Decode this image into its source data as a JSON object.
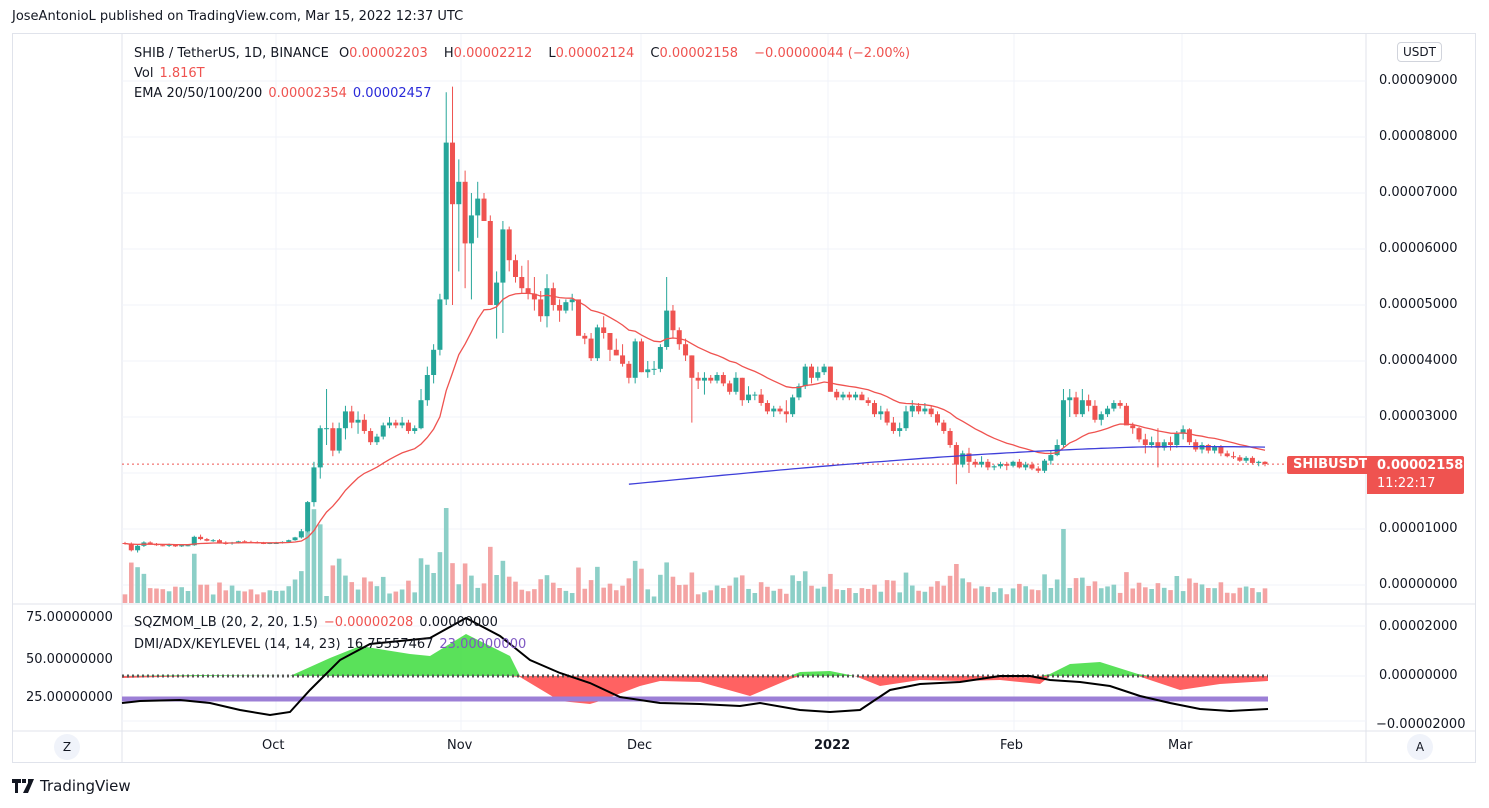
{
  "header": {
    "published": "JoseAntonioL published on TradingView.com, Mar 15, 2022 12:37 UTC"
  },
  "legend": {
    "symbol": "SHIB / TetherUS, 1D, BINANCE",
    "o_label": "O",
    "o": "0.00002203",
    "h_label": "H",
    "h": "0.00002212",
    "l_label": "L",
    "l": "0.00002124",
    "c_label": "C",
    "c": "0.00002158",
    "change": "−0.00000044 (−2.00%)",
    "vol_label": "Vol",
    "vol": "1.816T",
    "ema_label": "EMA 20/50/100/200",
    "ema1": "0.00002354",
    "ema2": "0.00002457",
    "sqz_label": "SQZMOM_LB (20, 2, 20, 1.5)",
    "sqz1": "−0.00000208",
    "sqz2": "0.00000000",
    "dmi_label": "DMI/ADX/KEYLEVEL (14, 14, 23)",
    "dmi1": "16.75557467",
    "dmi2": "23.00000000"
  },
  "currency_button": "USDT",
  "price_tag": {
    "symbol": "SHIBUSDT",
    "price": "0.00002158",
    "countdown": "11:22:17",
    "color": "#ef5350"
  },
  "left_axis": [
    "75.00000000",
    "50.00000000",
    "25.00000000"
  ],
  "right_axis_lower": [
    "0.00002000",
    "0.00000000",
    "−0.00002000"
  ],
  "scale_buttons": {
    "left": "Z",
    "right": "A"
  },
  "brand": "TradingView",
  "colors": {
    "up": "#26a69a",
    "down": "#ef5350",
    "ema20": "#ef5350",
    "ema200": "#3f3fd9",
    "vol_up": "#8ccfc7",
    "vol_down": "#f4a3a3",
    "keylevel": "#9c7fd6"
  },
  "chart_data": {
    "type": "candlestick",
    "title": "SHIB / TetherUS, 1D, BINANCE",
    "x_ticks": [
      "Oct",
      "Nov",
      "Dec",
      "2022",
      "Feb",
      "Mar"
    ],
    "y_ticks": [
      "0.00009000",
      "0.00008000",
      "0.00007000",
      "0.00006000",
      "0.00005000",
      "0.00004000",
      "0.00003000",
      "0.00001000",
      "0.00000000"
    ],
    "ylim": [
      0,
      9.3e-05
    ],
    "last_price": 2.158e-05,
    "ohlc_1e-5": [
      [
        0.75,
        0.77,
        0.72,
        0.74
      ],
      [
        0.74,
        0.76,
        0.6,
        0.62
      ],
      [
        0.62,
        0.73,
        0.58,
        0.7
      ],
      [
        0.7,
        0.78,
        0.68,
        0.76
      ],
      [
        0.76,
        0.78,
        0.72,
        0.73
      ],
      [
        0.73,
        0.75,
        0.7,
        0.71
      ],
      [
        0.71,
        0.73,
        0.69,
        0.7
      ],
      [
        0.7,
        0.74,
        0.68,
        0.72
      ],
      [
        0.72,
        0.73,
        0.68,
        0.69
      ],
      [
        0.69,
        0.72,
        0.68,
        0.71
      ],
      [
        0.71,
        0.72,
        0.69,
        0.71
      ],
      [
        0.71,
        0.88,
        0.7,
        0.86
      ],
      [
        0.86,
        0.9,
        0.8,
        0.82
      ],
      [
        0.82,
        0.84,
        0.78,
        0.79
      ],
      [
        0.79,
        0.82,
        0.77,
        0.8
      ],
      [
        0.8,
        0.82,
        0.74,
        0.75
      ],
      [
        0.75,
        0.78,
        0.72,
        0.74
      ],
      [
        0.74,
        0.77,
        0.72,
        0.76
      ],
      [
        0.76,
        0.79,
        0.74,
        0.78
      ],
      [
        0.78,
        0.8,
        0.75,
        0.77
      ],
      [
        0.77,
        0.79,
        0.75,
        0.76
      ],
      [
        0.76,
        0.78,
        0.74,
        0.75
      ],
      [
        0.75,
        0.77,
        0.73,
        0.74
      ],
      [
        0.74,
        0.76,
        0.73,
        0.75
      ],
      [
        0.75,
        0.77,
        0.74,
        0.75
      ],
      [
        0.75,
        0.78,
        0.74,
        0.77
      ],
      [
        0.77,
        0.81,
        0.76,
        0.8
      ],
      [
        0.8,
        0.86,
        0.79,
        0.85
      ],
      [
        0.85,
        1.0,
        0.83,
        0.96
      ],
      [
        0.96,
        1.5,
        0.94,
        1.48
      ],
      [
        1.48,
        2.2,
        1.4,
        2.1
      ],
      [
        2.1,
        2.85,
        1.9,
        2.8
      ],
      [
        2.8,
        3.5,
        2.5,
        2.8
      ],
      [
        2.8,
        2.9,
        2.3,
        2.4
      ],
      [
        2.4,
        2.9,
        2.35,
        2.8
      ],
      [
        2.8,
        3.2,
        2.6,
        3.1
      ],
      [
        3.1,
        3.2,
        2.8,
        2.9
      ],
      [
        2.9,
        3.1,
        2.7,
        2.95
      ],
      [
        2.95,
        3.05,
        2.7,
        2.75
      ],
      [
        2.75,
        2.8,
        2.5,
        2.55
      ],
      [
        2.55,
        2.7,
        2.5,
        2.65
      ],
      [
        2.65,
        2.9,
        2.6,
        2.85
      ],
      [
        2.85,
        3.0,
        2.8,
        2.9
      ],
      [
        2.9,
        2.95,
        2.8,
        2.85
      ],
      [
        2.85,
        3.0,
        2.8,
        2.9
      ],
      [
        2.9,
        2.95,
        2.7,
        2.75
      ],
      [
        2.75,
        2.85,
        2.7,
        2.8
      ],
      [
        2.8,
        3.5,
        2.78,
        3.3
      ],
      [
        3.3,
        3.9,
        3.2,
        3.75
      ],
      [
        3.75,
        4.3,
        3.6,
        4.2
      ],
      [
        4.2,
        5.2,
        4.1,
        5.1
      ],
      [
        5.1,
        8.8,
        5.0,
        7.9
      ],
      [
        7.9,
        8.9,
        5.0,
        6.8
      ],
      [
        6.8,
        7.6,
        5.6,
        7.2
      ],
      [
        7.2,
        7.4,
        5.3,
        6.1
      ],
      [
        6.1,
        7.0,
        5.1,
        6.6
      ],
      [
        6.6,
        7.2,
        6.2,
        6.9
      ],
      [
        6.9,
        7.0,
        6.5,
        6.5
      ],
      [
        6.5,
        6.6,
        5.2,
        5.0
      ],
      [
        5.0,
        5.6,
        4.4,
        5.4
      ],
      [
        5.4,
        6.5,
        4.5,
        6.35
      ],
      [
        6.35,
        6.4,
        5.6,
        5.8
      ],
      [
        5.8,
        5.9,
        5.4,
        5.5
      ],
      [
        5.5,
        5.7,
        5.2,
        5.3
      ],
      [
        5.3,
        5.8,
        5.1,
        5.2
      ],
      [
        5.2,
        5.5,
        4.9,
        5.1
      ],
      [
        5.1,
        5.25,
        4.7,
        4.8
      ],
      [
        4.8,
        5.55,
        4.6,
        5.3
      ],
      [
        5.3,
        5.4,
        4.9,
        5.0
      ],
      [
        5.0,
        5.1,
        4.7,
        4.9
      ],
      [
        4.9,
        5.1,
        4.85,
        5.05
      ],
      [
        5.05,
        5.2,
        4.9,
        5.1
      ],
      [
        5.1,
        5.0,
        4.5,
        4.45
      ],
      [
        4.45,
        4.5,
        4.3,
        4.4
      ],
      [
        4.4,
        4.5,
        4.0,
        4.05
      ],
      [
        4.05,
        4.65,
        4.0,
        4.6
      ],
      [
        4.6,
        4.8,
        4.4,
        4.5
      ],
      [
        4.5,
        4.5,
        4.0,
        4.2
      ],
      [
        4.2,
        4.4,
        4.1,
        4.1
      ],
      [
        4.1,
        4.3,
        3.9,
        3.95
      ],
      [
        3.95,
        4.0,
        3.6,
        3.7
      ],
      [
        3.7,
        4.4,
        3.6,
        4.35
      ],
      [
        4.35,
        4.4,
        3.8,
        3.8
      ],
      [
        3.8,
        4.0,
        3.7,
        3.85
      ],
      [
        3.85,
        4.0,
        3.75,
        3.86
      ],
      [
        3.86,
        4.3,
        3.8,
        4.25
      ],
      [
        4.25,
        5.5,
        4.2,
        4.9
      ],
      [
        4.9,
        5.0,
        4.4,
        4.55
      ],
      [
        4.55,
        4.6,
        4.2,
        4.3
      ],
      [
        4.3,
        4.4,
        4.0,
        4.1
      ],
      [
        4.1,
        4.1,
        2.9,
        3.7
      ],
      [
        3.7,
        3.8,
        3.5,
        3.65
      ],
      [
        3.65,
        3.8,
        3.4,
        3.7
      ],
      [
        3.7,
        3.75,
        3.6,
        3.65
      ],
      [
        3.65,
        3.8,
        3.6,
        3.75
      ],
      [
        3.75,
        3.8,
        3.55,
        3.6
      ],
      [
        3.6,
        3.65,
        3.4,
        3.45
      ],
      [
        3.45,
        3.8,
        3.4,
        3.7
      ],
      [
        3.7,
        3.7,
        3.2,
        3.3
      ],
      [
        3.3,
        3.55,
        3.25,
        3.4
      ],
      [
        3.4,
        3.45,
        3.3,
        3.4
      ],
      [
        3.4,
        3.5,
        3.2,
        3.25
      ],
      [
        3.25,
        3.3,
        3.05,
        3.1
      ],
      [
        3.1,
        3.2,
        3.0,
        3.15
      ],
      [
        3.15,
        3.2,
        3.05,
        3.1
      ],
      [
        3.1,
        3.3,
        2.9,
        3.05
      ],
      [
        3.05,
        3.4,
        3.0,
        3.35
      ],
      [
        3.35,
        3.6,
        3.3,
        3.55
      ],
      [
        3.55,
        3.95,
        3.5,
        3.9
      ],
      [
        3.9,
        3.95,
        3.6,
        3.7
      ],
      [
        3.7,
        3.9,
        3.65,
        3.8
      ],
      [
        3.8,
        3.95,
        3.75,
        3.9
      ],
      [
        3.9,
        3.9,
        3.5,
        3.45
      ],
      [
        3.45,
        3.5,
        3.3,
        3.35
      ],
      [
        3.35,
        3.45,
        3.3,
        3.4
      ],
      [
        3.4,
        3.45,
        3.3,
        3.35
      ],
      [
        3.35,
        3.45,
        3.3,
        3.4
      ],
      [
        3.4,
        3.45,
        3.3,
        3.3
      ],
      [
        3.3,
        3.35,
        3.2,
        3.25
      ],
      [
        3.25,
        3.3,
        3.0,
        3.05
      ],
      [
        3.05,
        3.2,
        2.95,
        3.1
      ],
      [
        3.1,
        3.15,
        2.85,
        2.9
      ],
      [
        2.9,
        3.0,
        2.7,
        2.75
      ],
      [
        2.75,
        2.9,
        2.65,
        2.8
      ],
      [
        2.8,
        3.2,
        2.75,
        3.1
      ],
      [
        3.1,
        3.3,
        3.0,
        3.2
      ],
      [
        3.2,
        3.25,
        3.05,
        3.1
      ],
      [
        3.1,
        3.25,
        3.05,
        3.15
      ],
      [
        3.15,
        3.2,
        3.0,
        3.05
      ],
      [
        3.05,
        3.1,
        2.85,
        2.9
      ],
      [
        2.9,
        2.95,
        2.7,
        2.75
      ],
      [
        2.75,
        2.8,
        2.45,
        2.5
      ],
      [
        2.5,
        2.55,
        1.8,
        2.15
      ],
      [
        2.15,
        2.4,
        2.1,
        2.35
      ],
      [
        2.35,
        2.45,
        2.0,
        2.2
      ],
      [
        2.2,
        2.25,
        2.1,
        2.15
      ],
      [
        2.15,
        2.3,
        2.1,
        2.2
      ],
      [
        2.2,
        2.25,
        2.05,
        2.1
      ],
      [
        2.1,
        2.15,
        2.05,
        2.12
      ],
      [
        2.12,
        2.2,
        2.08,
        2.16
      ],
      [
        2.16,
        2.2,
        2.05,
        2.13
      ],
      [
        2.13,
        2.22,
        2.1,
        2.2
      ],
      [
        2.2,
        2.25,
        2.08,
        2.1
      ],
      [
        2.1,
        2.2,
        2.05,
        2.15
      ],
      [
        2.15,
        2.2,
        2.05,
        2.08
      ],
      [
        2.08,
        2.12,
        2.0,
        2.04
      ],
      [
        2.04,
        2.25,
        2.0,
        2.22
      ],
      [
        2.22,
        2.4,
        2.15,
        2.32
      ],
      [
        2.32,
        2.6,
        2.3,
        2.5
      ],
      [
        2.5,
        3.5,
        2.45,
        3.3
      ],
      [
        3.3,
        3.5,
        3.0,
        3.35
      ],
      [
        3.35,
        3.45,
        3.0,
        3.05
      ],
      [
        3.05,
        3.5,
        3.0,
        3.3
      ],
      [
        3.3,
        3.4,
        3.1,
        3.2
      ],
      [
        3.2,
        3.3,
        2.9,
        2.95
      ],
      [
        2.95,
        3.1,
        2.85,
        3.05
      ],
      [
        3.05,
        3.2,
        3.0,
        3.15
      ],
      [
        3.15,
        3.3,
        3.1,
        3.25
      ],
      [
        3.25,
        3.3,
        3.15,
        3.2
      ],
      [
        3.2,
        3.25,
        2.95,
        2.85
      ],
      [
        2.85,
        2.9,
        2.7,
        2.8
      ],
      [
        2.8,
        2.82,
        2.55,
        2.6
      ],
      [
        2.6,
        2.7,
        2.35,
        2.5
      ],
      [
        2.5,
        2.65,
        2.45,
        2.55
      ],
      [
        2.55,
        2.8,
        2.1,
        2.45
      ],
      [
        2.45,
        2.6,
        2.4,
        2.55
      ],
      [
        2.55,
        2.65,
        2.4,
        2.5
      ],
      [
        2.5,
        2.75,
        2.45,
        2.7
      ],
      [
        2.7,
        2.85,
        2.6,
        2.78
      ],
      [
        2.78,
        2.8,
        2.5,
        2.55
      ],
      [
        2.55,
        2.6,
        2.38,
        2.42
      ],
      [
        2.42,
        2.55,
        2.35,
        2.5
      ],
      [
        2.5,
        2.52,
        2.35,
        2.4
      ],
      [
        2.4,
        2.5,
        2.35,
        2.47
      ],
      [
        2.47,
        2.5,
        2.3,
        2.35
      ],
      [
        2.35,
        2.4,
        2.28,
        2.3
      ],
      [
        2.3,
        2.38,
        2.25,
        2.28
      ],
      [
        2.28,
        2.32,
        2.2,
        2.22
      ],
      [
        2.22,
        2.3,
        2.18,
        2.27
      ],
      [
        2.27,
        2.3,
        2.15,
        2.18
      ],
      [
        2.18,
        2.22,
        2.12,
        2.2
      ],
      [
        2.2,
        2.21,
        2.12,
        2.16
      ]
    ],
    "ema20_1e-5": "smooth line following price, peaking ~5.2 at mid-Nov",
    "ema200_1e-5": "from ~1.8 (late Nov) rising to ~2.5 (mid-Mar)",
    "lower_pane": {
      "sqzmom": "histogram area: positive Oct-Nov peak ~+0.000022, negative ~-0.000008 late Nov, small positive late Dec, negative Jan, positive mid-Feb, negative Mar",
      "adx": "black line 16.76 at end; peaked ~75 end of Oct",
      "keylevel": 23
    }
  }
}
